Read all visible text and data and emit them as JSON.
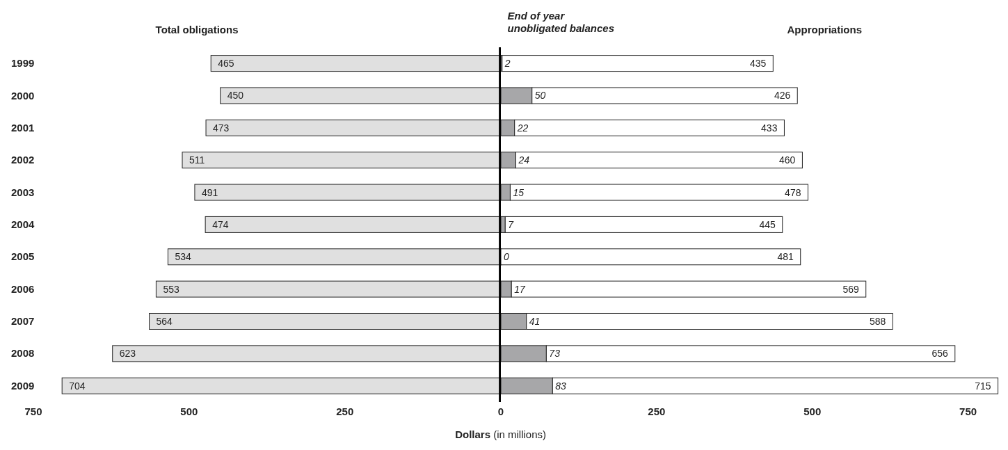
{
  "chart_data": [
    {
      "type": "bar",
      "orientation": "horizontal",
      "categories": [
        "1999",
        "2000",
        "2001",
        "2002",
        "2003",
        "2004",
        "2005",
        "2006",
        "2007",
        "2008",
        "2009"
      ],
      "series": [
        {
          "name": "Total obligations",
          "color": "#e0e0e0",
          "values": [
            465,
            450,
            473,
            511,
            491,
            474,
            534,
            553,
            564,
            623,
            704
          ]
        }
      ],
      "data_labels": true,
      "xlim": [
        750,
        0
      ],
      "xticks": [
        750,
        500,
        250
      ],
      "ref_lines": [
        {
          "axis": "x",
          "value": 0,
          "color": "#000000"
        }
      ],
      "grid": false,
      "legend": "top"
    },
    {
      "type": "bar",
      "orientation": "horizontal",
      "stacked": true,
      "xlabel": "Dollars (in millions)",
      "tick_labels": "x",
      "categories": [
        "1999",
        "2000",
        "2001",
        "2002",
        "2003",
        "2004",
        "2005",
        "2006",
        "2007",
        "2008",
        "2009"
      ],
      "series": [
        {
          "name": "End of year unobligated balances",
          "color": "#a7a7a9",
          "values": [
            2,
            50,
            22,
            24,
            15,
            7,
            0,
            17,
            41,
            73,
            83
          ]
        },
        {
          "name": "Appropriations",
          "color": "#ffffff",
          "values": [
            435,
            426,
            433,
            460,
            478,
            445,
            481,
            569,
            588,
            656,
            715
          ]
        }
      ],
      "data_labels": true,
      "xlim": [
        0,
        800
      ],
      "xticks": [
        0,
        250,
        500,
        750
      ],
      "grid": false,
      "legend": "top"
    }
  ]
}
